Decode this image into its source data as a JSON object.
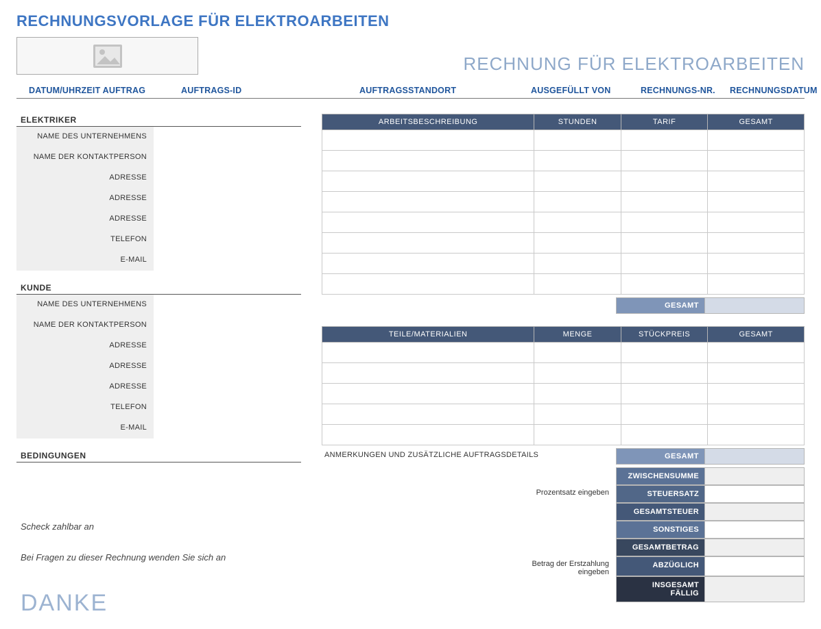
{
  "title": "RECHNUNGSVORLAGE FÜR ELEKTROARBEITEN",
  "subtitle": "RECHNUNG FÜR ELEKTROARBEITEN",
  "meta": {
    "date_label": "DATUM/UHRZEIT AUFTRAG",
    "jobid_label": "AUFTRAGS-ID",
    "location_label": "AUFTRAGSSTANDORT",
    "completed_by_label": "AUSGEFÜLLT VON",
    "invoice_no_label": "RECHNUNGS-NR.",
    "invoice_date_label": "RECHNUNGSDATUM"
  },
  "electrician": {
    "section": "ELEKTRIKER",
    "company": "NAME DES UNTERNEHMENS",
    "contact": "NAME DER KONTAKTPERSON",
    "address1": "ADRESSE",
    "address2": "ADRESSE",
    "address3": "ADRESSE",
    "phone": "TELEFON",
    "email": "E-MAIL"
  },
  "customer": {
    "section": "KUNDE",
    "company": "NAME DES UNTERNEHMENS",
    "contact": "NAME DER KONTAKTPERSON",
    "address1": "ADRESSE",
    "address2": "ADRESSE",
    "address3": "ADRESSE",
    "phone": "TELEFON",
    "email": "E-MAIL"
  },
  "terms": {
    "section": "BEDINGUNGEN"
  },
  "notes": {
    "check_payable": "Scheck zahlbar an",
    "inquiry": "Bei Fragen zu dieser Rechnung wenden Sie sich an",
    "thanks": "DANKE"
  },
  "labor_table": {
    "headers": [
      "ARBEITSBESCHREIBUNG",
      "STUNDEN",
      "TARIF",
      "GESAMT"
    ],
    "rows": 8,
    "subtotal_label": "GESAMT"
  },
  "parts_table": {
    "headers": [
      "TEILE/MATERIALIEN",
      "MENGE",
      "STÜCKPREIS",
      "GESAMT"
    ],
    "rows": 5,
    "subtotal_label": "GESAMT",
    "notes_label": "ANMERKUNGEN UND ZUSÄTZLICHE AUFTRAGSDETAILS"
  },
  "totals": [
    {
      "note": "",
      "label": "ZWISCHENSUMME",
      "label_cls": "c-mid",
      "val_cls": ""
    },
    {
      "note": "Prozentsatz eingeben",
      "label": "STEUERSATZ",
      "label_cls": "c-mid2",
      "val_cls": "v-white"
    },
    {
      "note": "",
      "label": "GESAMTSTEUER",
      "label_cls": "c-dark",
      "val_cls": ""
    },
    {
      "note": "",
      "label": "SONSTIGES",
      "label_cls": "c-mid",
      "val_cls": "v-white"
    },
    {
      "note": "",
      "label": "GESAMTBETRAG",
      "label_cls": "c-darker",
      "val_cls": ""
    },
    {
      "note": "Betrag der Erstzahlung\neingeben",
      "label": "ABZÜGLICH",
      "label_cls": "c-dark",
      "val_cls": "v-white"
    },
    {
      "note": "",
      "label": "INSGESAMT FÄLLIG",
      "label_cls": "c-black",
      "val_cls": ""
    }
  ]
}
